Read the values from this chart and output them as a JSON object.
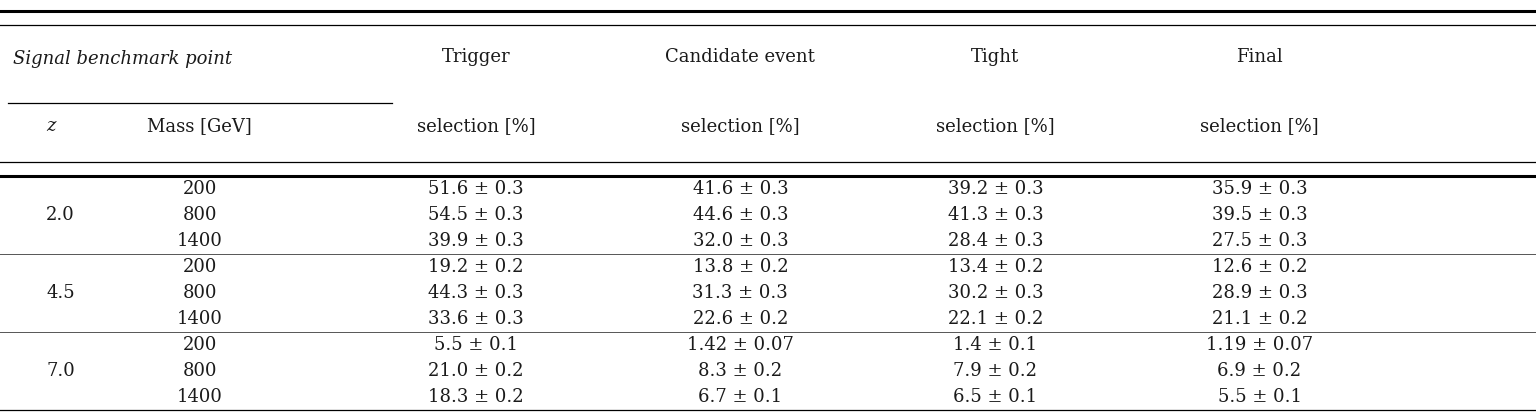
{
  "header_sbp": "Signal benchmark point",
  "header_z": "z",
  "header_mass": "Mass [GeV]",
  "header_cols": [
    [
      "Trigger",
      "selection [%]"
    ],
    [
      "Candidate event",
      "selection [%]"
    ],
    [
      "Tight",
      "selection [%]"
    ],
    [
      "Final",
      "selection [%]"
    ]
  ],
  "rows": [
    [
      "",
      "200",
      "51.6 ± 0.3",
      "41.6 ± 0.3",
      "39.2 ± 0.3",
      "35.9 ± 0.3"
    ],
    [
      "2.0",
      "800",
      "54.5 ± 0.3",
      "44.6 ± 0.3",
      "41.3 ± 0.3",
      "39.5 ± 0.3"
    ],
    [
      "",
      "1400",
      "39.9 ± 0.3",
      "32.0 ± 0.3",
      "28.4 ± 0.3",
      "27.5 ± 0.3"
    ],
    [
      "",
      "200",
      "19.2 ± 0.2",
      "13.8 ± 0.2",
      "13.4 ± 0.2",
      "12.6 ± 0.2"
    ],
    [
      "4.5",
      "800",
      "44.3 ± 0.3",
      "31.3 ± 0.3",
      "30.2 ± 0.3",
      "28.9 ± 0.3"
    ],
    [
      "",
      "1400",
      "33.6 ± 0.3",
      "22.6 ± 0.2",
      "22.1 ± 0.2",
      "21.1 ± 0.2"
    ],
    [
      "",
      "200",
      "5.5 ± 0.1",
      "1.42 ± 0.07",
      "1.4 ± 0.1",
      "1.19 ± 0.07"
    ],
    [
      "7.0",
      "800",
      "21.0 ± 0.2",
      "8.3 ± 0.2",
      "7.9 ± 0.2",
      "6.9 ± 0.2"
    ],
    [
      "",
      "1400",
      "18.3 ± 0.2",
      "6.7 ± 0.1",
      "6.5 ± 0.1",
      "5.5 ± 0.1"
    ]
  ],
  "background_color": "#ffffff",
  "text_color": "#1a1a1a",
  "fontsize": 13.0,
  "fontsize_header": 13.0
}
